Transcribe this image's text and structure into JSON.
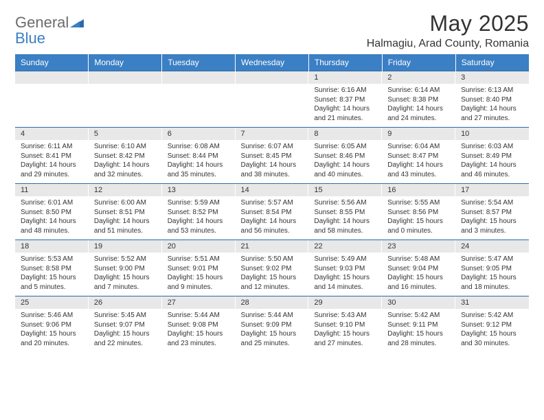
{
  "brand": {
    "word1": "General",
    "word2": "Blue"
  },
  "title": "May 2025",
  "location": "Halmagiu, Arad County, Romania",
  "colors": {
    "header_bg": "#3b7fc4",
    "header_text": "#ffffff",
    "daynum_bg": "#e8e8e8",
    "row_border": "#2d6aa8",
    "body_text": "#333333",
    "logo_gray": "#6b6b6b",
    "logo_blue": "#3b7fc4"
  },
  "typography": {
    "title_fontsize": 32,
    "location_fontsize": 16,
    "weekday_fontsize": 12,
    "daynum_fontsize": 11,
    "body_fontsize": 10
  },
  "weekdays": [
    "Sunday",
    "Monday",
    "Tuesday",
    "Wednesday",
    "Thursday",
    "Friday",
    "Saturday"
  ],
  "weeks": [
    [
      null,
      null,
      null,
      null,
      {
        "n": "1",
        "sr": "6:16 AM",
        "ss": "8:37 PM",
        "dl": "14 hours and 21 minutes."
      },
      {
        "n": "2",
        "sr": "6:14 AM",
        "ss": "8:38 PM",
        "dl": "14 hours and 24 minutes."
      },
      {
        "n": "3",
        "sr": "6:13 AM",
        "ss": "8:40 PM",
        "dl": "14 hours and 27 minutes."
      }
    ],
    [
      {
        "n": "4",
        "sr": "6:11 AM",
        "ss": "8:41 PM",
        "dl": "14 hours and 29 minutes."
      },
      {
        "n": "5",
        "sr": "6:10 AM",
        "ss": "8:42 PM",
        "dl": "14 hours and 32 minutes."
      },
      {
        "n": "6",
        "sr": "6:08 AM",
        "ss": "8:44 PM",
        "dl": "14 hours and 35 minutes."
      },
      {
        "n": "7",
        "sr": "6:07 AM",
        "ss": "8:45 PM",
        "dl": "14 hours and 38 minutes."
      },
      {
        "n": "8",
        "sr": "6:05 AM",
        "ss": "8:46 PM",
        "dl": "14 hours and 40 minutes."
      },
      {
        "n": "9",
        "sr": "6:04 AM",
        "ss": "8:47 PM",
        "dl": "14 hours and 43 minutes."
      },
      {
        "n": "10",
        "sr": "6:03 AM",
        "ss": "8:49 PM",
        "dl": "14 hours and 46 minutes."
      }
    ],
    [
      {
        "n": "11",
        "sr": "6:01 AM",
        "ss": "8:50 PM",
        "dl": "14 hours and 48 minutes."
      },
      {
        "n": "12",
        "sr": "6:00 AM",
        "ss": "8:51 PM",
        "dl": "14 hours and 51 minutes."
      },
      {
        "n": "13",
        "sr": "5:59 AM",
        "ss": "8:52 PM",
        "dl": "14 hours and 53 minutes."
      },
      {
        "n": "14",
        "sr": "5:57 AM",
        "ss": "8:54 PM",
        "dl": "14 hours and 56 minutes."
      },
      {
        "n": "15",
        "sr": "5:56 AM",
        "ss": "8:55 PM",
        "dl": "14 hours and 58 minutes."
      },
      {
        "n": "16",
        "sr": "5:55 AM",
        "ss": "8:56 PM",
        "dl": "15 hours and 0 minutes."
      },
      {
        "n": "17",
        "sr": "5:54 AM",
        "ss": "8:57 PM",
        "dl": "15 hours and 3 minutes."
      }
    ],
    [
      {
        "n": "18",
        "sr": "5:53 AM",
        "ss": "8:58 PM",
        "dl": "15 hours and 5 minutes."
      },
      {
        "n": "19",
        "sr": "5:52 AM",
        "ss": "9:00 PM",
        "dl": "15 hours and 7 minutes."
      },
      {
        "n": "20",
        "sr": "5:51 AM",
        "ss": "9:01 PM",
        "dl": "15 hours and 9 minutes."
      },
      {
        "n": "21",
        "sr": "5:50 AM",
        "ss": "9:02 PM",
        "dl": "15 hours and 12 minutes."
      },
      {
        "n": "22",
        "sr": "5:49 AM",
        "ss": "9:03 PM",
        "dl": "15 hours and 14 minutes."
      },
      {
        "n": "23",
        "sr": "5:48 AM",
        "ss": "9:04 PM",
        "dl": "15 hours and 16 minutes."
      },
      {
        "n": "24",
        "sr": "5:47 AM",
        "ss": "9:05 PM",
        "dl": "15 hours and 18 minutes."
      }
    ],
    [
      {
        "n": "25",
        "sr": "5:46 AM",
        "ss": "9:06 PM",
        "dl": "15 hours and 20 minutes."
      },
      {
        "n": "26",
        "sr": "5:45 AM",
        "ss": "9:07 PM",
        "dl": "15 hours and 22 minutes."
      },
      {
        "n": "27",
        "sr": "5:44 AM",
        "ss": "9:08 PM",
        "dl": "15 hours and 23 minutes."
      },
      {
        "n": "28",
        "sr": "5:44 AM",
        "ss": "9:09 PM",
        "dl": "15 hours and 25 minutes."
      },
      {
        "n": "29",
        "sr": "5:43 AM",
        "ss": "9:10 PM",
        "dl": "15 hours and 27 minutes."
      },
      {
        "n": "30",
        "sr": "5:42 AM",
        "ss": "9:11 PM",
        "dl": "15 hours and 28 minutes."
      },
      {
        "n": "31",
        "sr": "5:42 AM",
        "ss": "9:12 PM",
        "dl": "15 hours and 30 minutes."
      }
    ]
  ],
  "labels": {
    "sunrise": "Sunrise:",
    "sunset": "Sunset:",
    "daylight": "Daylight:"
  }
}
